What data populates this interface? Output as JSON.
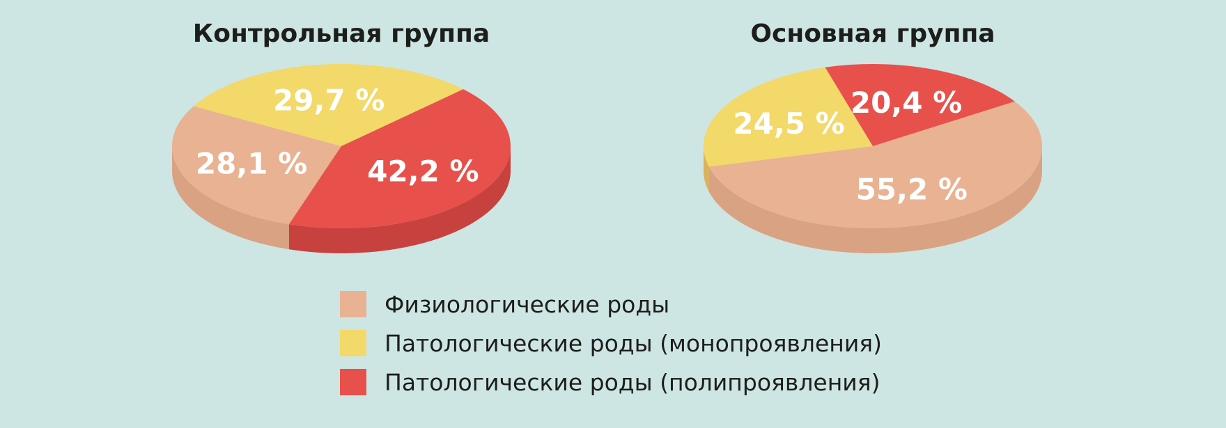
{
  "chart_data": [
    {
      "type": "pie",
      "title": "Контрольная группа",
      "slices": [
        {
          "label": "Физиологические роды",
          "value": 28.1,
          "value_label": "28,1 %"
        },
        {
          "label": "Патологические роды (монопроявления)",
          "value": 29.7,
          "value_label": "29,7 %"
        },
        {
          "label": "Патологические роды (полипроявления)",
          "value": 42.2,
          "value_label": "42,2 %"
        }
      ]
    },
    {
      "type": "pie",
      "title": "Основная группа",
      "slices": [
        {
          "label": "Физиологические роды",
          "value": 55.2,
          "value_label": "55,2 %"
        },
        {
          "label": "Патологические роды (монопроявления)",
          "value": 24.5,
          "value_label": "24,5 %"
        },
        {
          "label": "Патологические роды (полипроявления)",
          "value": 20.4,
          "value_label": "20,4 %"
        }
      ]
    }
  ],
  "legend": {
    "placement": "bottom-center",
    "items": [
      {
        "label": "Физиологические роды",
        "color": "#e9b292"
      },
      {
        "label": "Патологические роды (монопроявления)",
        "color": "#f3d86a"
      },
      {
        "label": "Патологические роды (полипроявления)",
        "color": "#e8504b"
      }
    ]
  },
  "colors": {
    "background": "#cde6e3",
    "side_shades": [
      "#d9a283",
      "#dcb15a",
      "#c7423e"
    ]
  }
}
